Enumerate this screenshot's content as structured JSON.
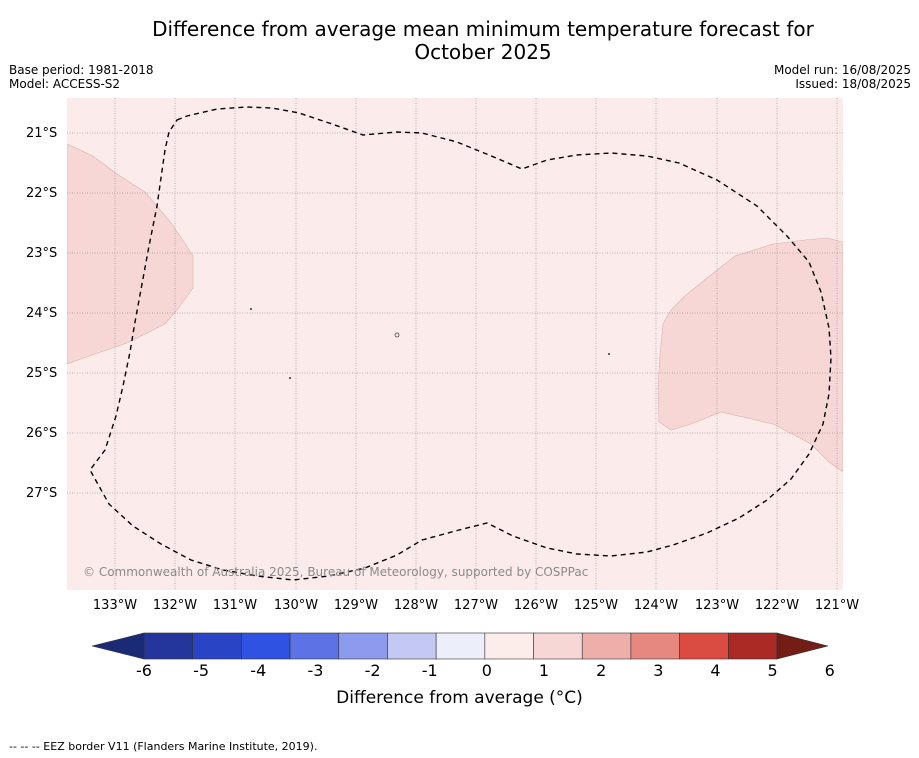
{
  "title_line1": "Difference from average mean minimum temperature forecast for",
  "title_line2": "October 2025",
  "base_period": "Base period: 1981-2018",
  "model": "Model: ACCESS-S2",
  "model_run": "Model run: 16/08/2025",
  "issued": "Issued: 18/08/2025",
  "copyright": "© Commonwealth of Australia 2025, Bureau of Meteorology, supported by COSPPac",
  "lat_labels": [
    "21°S",
    "22°S",
    "23°S",
    "24°S",
    "25°S",
    "26°S",
    "27°S"
  ],
  "lon_labels": [
    "133°W",
    "132°W",
    "131°W",
    "130°W",
    "129°W",
    "128°W",
    "127°W",
    "126°W",
    "125°W",
    "124°W",
    "123°W",
    "122°W",
    "121°W"
  ],
  "colorbar": {
    "ticks": [
      "-6",
      "-5",
      "-4",
      "-3",
      "-2",
      "-1",
      "0",
      "1",
      "2",
      "3",
      "4",
      "5",
      "6"
    ],
    "colors": [
      "#24369c",
      "#2a44c6",
      "#3052e3",
      "#5d73e5",
      "#8c9bed",
      "#c3c9f3",
      "#eceef9",
      "#fcecea",
      "#f7d7d5",
      "#eeafaa",
      "#e78880",
      "#da4b42",
      "#ab2a25"
    ],
    "under_color": "#1b2a75",
    "over_color": "#731d17",
    "label": "Difference from average (°C)"
  },
  "background_fill": "#fbeceb",
  "anomaly_fill": "#f6d7d6",
  "footer": "--  --  -- EEZ border V11 (Flanders Marine Institute, 2019)."
}
